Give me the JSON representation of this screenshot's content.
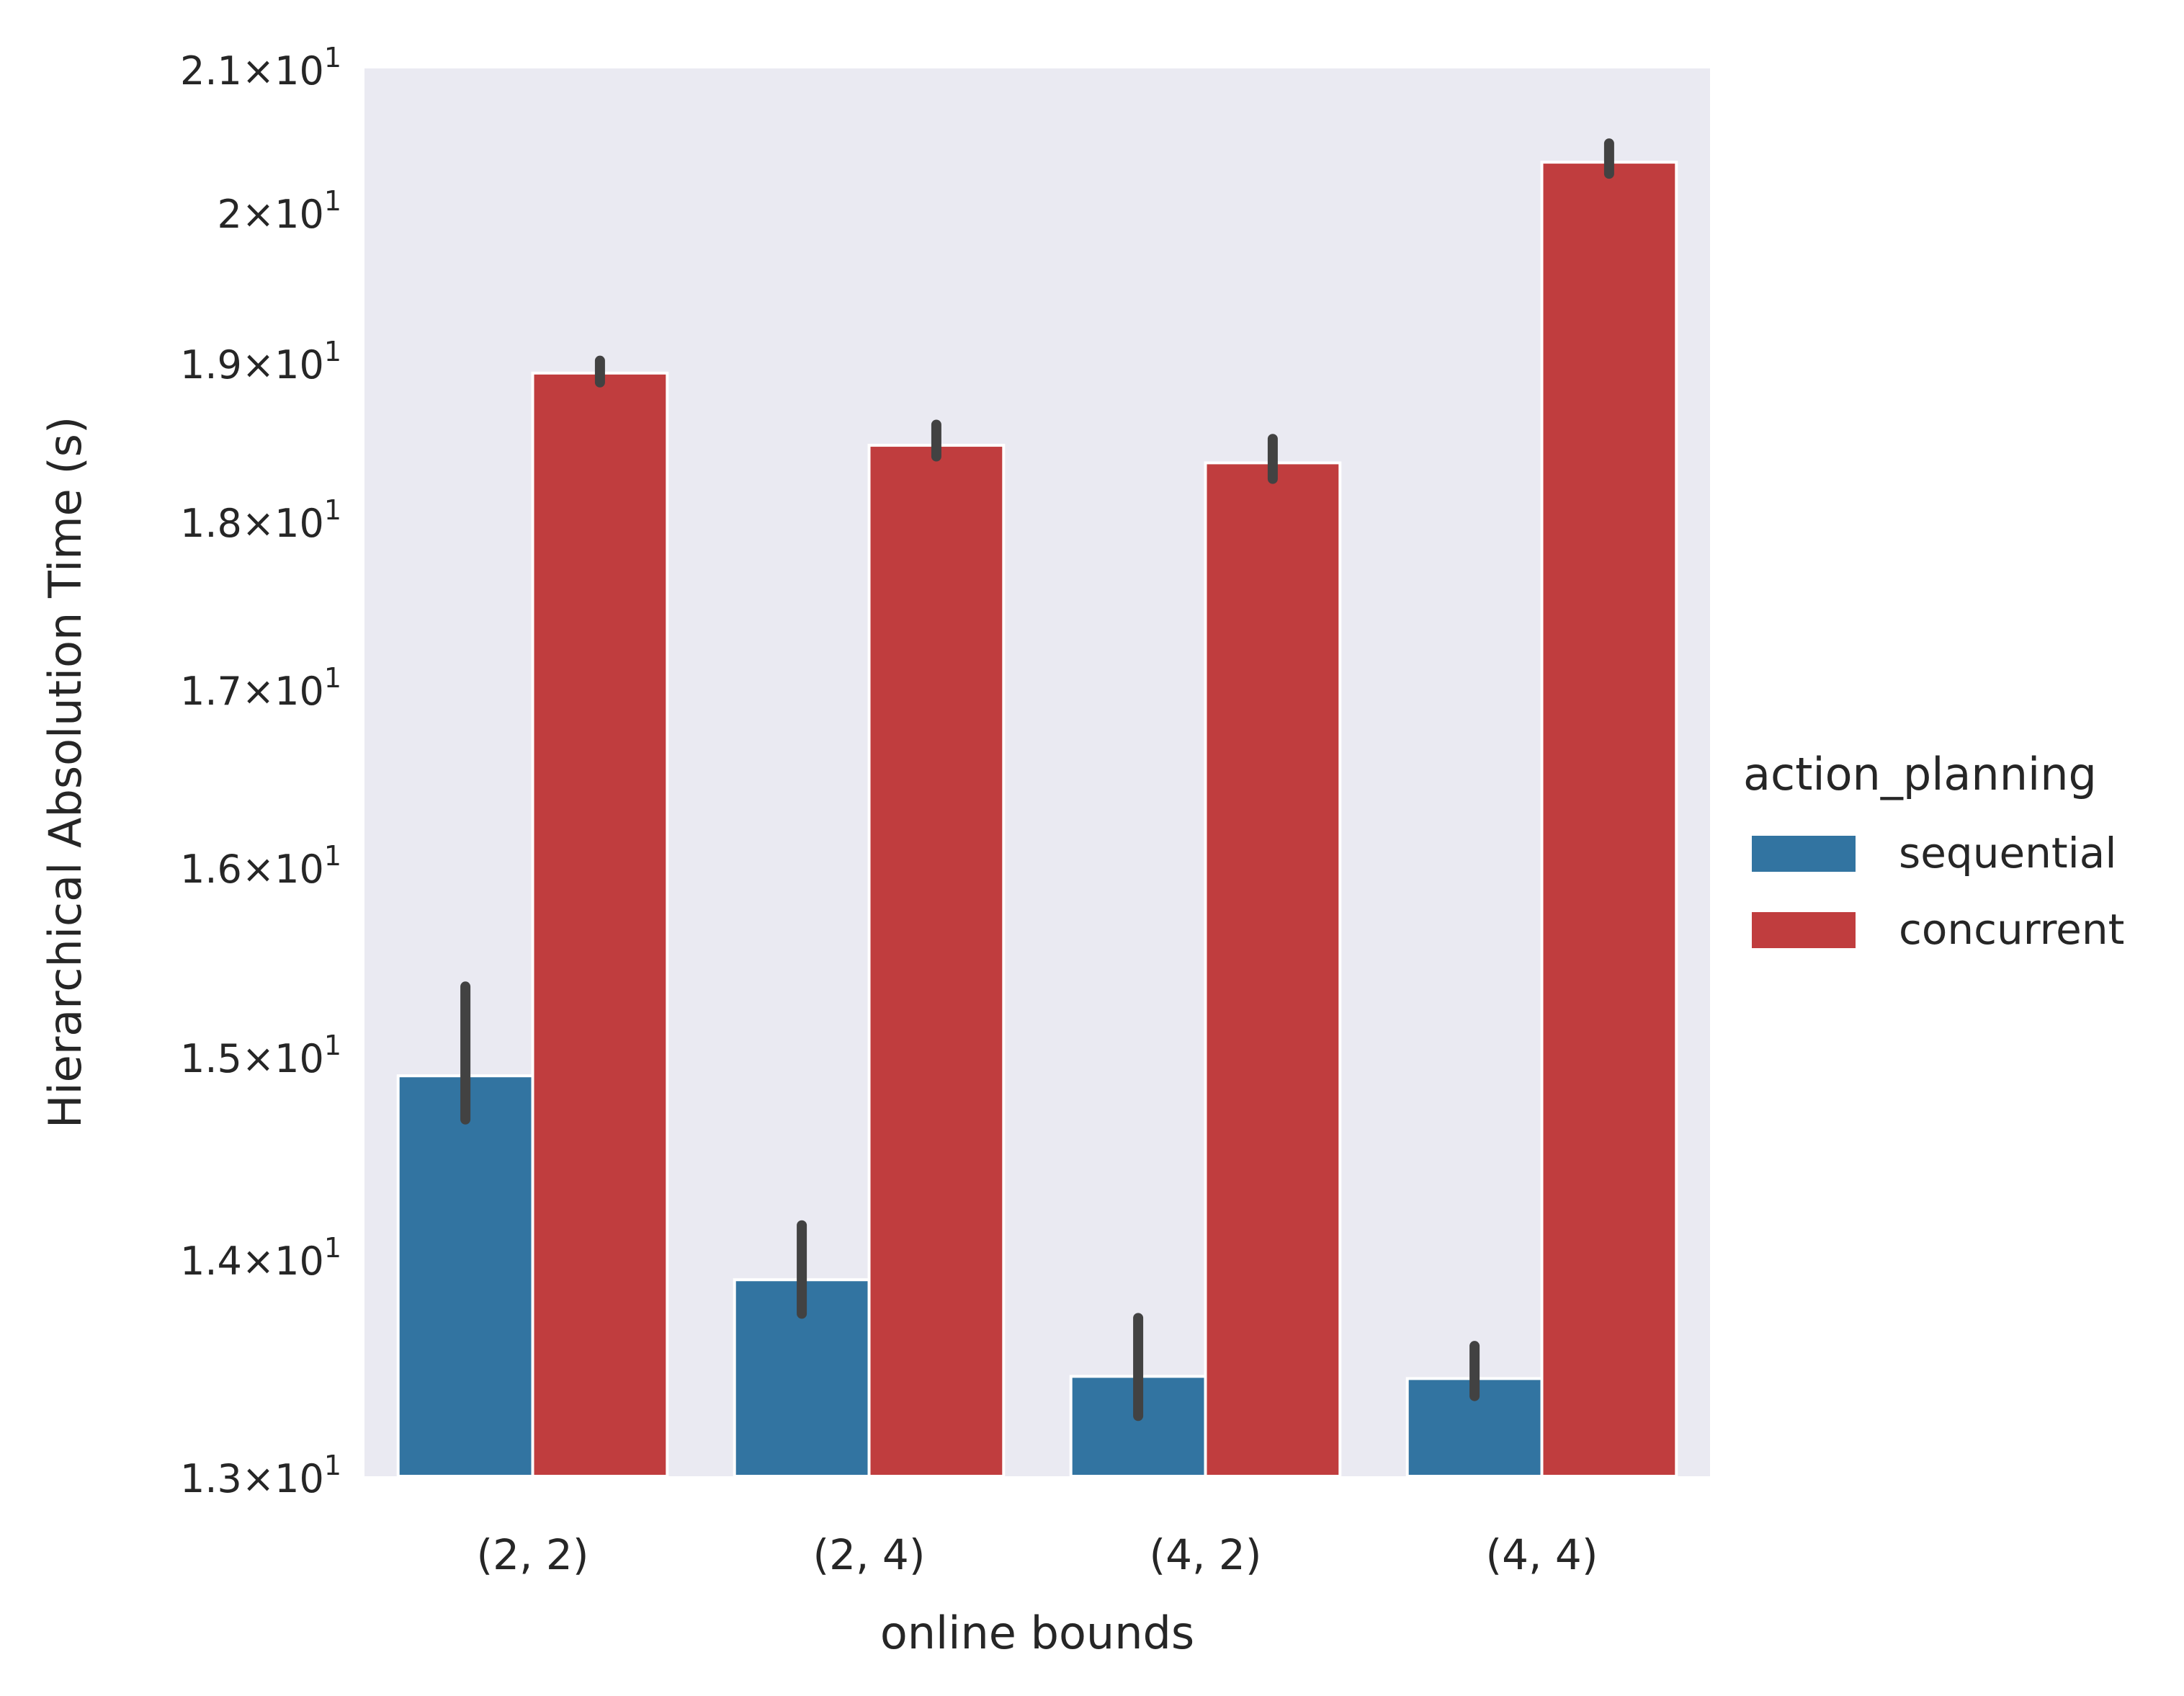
{
  "chart_data": {
    "type": "bar",
    "title": "",
    "xlabel": "online bounds",
    "ylabel": "Hierarchical Absolution Time (s)",
    "yscale": "log",
    "ylim": [
      13.0,
      21.0
    ],
    "yticks": [
      {
        "value": 13,
        "mantissa": "1.3",
        "times": "×",
        "base": "10",
        "exp": "1"
      },
      {
        "value": 14,
        "mantissa": "1.4",
        "times": "×",
        "base": "10",
        "exp": "1"
      },
      {
        "value": 15,
        "mantissa": "1.5",
        "times": "×",
        "base": "10",
        "exp": "1"
      },
      {
        "value": 16,
        "mantissa": "1.6",
        "times": "×",
        "base": "10",
        "exp": "1"
      },
      {
        "value": 17,
        "mantissa": "1.7",
        "times": "×",
        "base": "10",
        "exp": "1"
      },
      {
        "value": 18,
        "mantissa": "1.8",
        "times": "×",
        "base": "10",
        "exp": "1"
      },
      {
        "value": 19,
        "mantissa": "1.9",
        "times": "×",
        "base": "10",
        "exp": "1"
      },
      {
        "value": 20,
        "mantissa": "2",
        "times": "×",
        "base": "10",
        "exp": "1"
      },
      {
        "value": 21,
        "mantissa": "2.1",
        "times": "×",
        "base": "10",
        "exp": "1"
      }
    ],
    "categories": [
      "(2, 2)",
      "(2, 4)",
      "(4, 2)",
      "(4, 4)"
    ],
    "grid": false,
    "background": "#eaeaf2",
    "legend": {
      "title": "action_planning",
      "position": "right"
    },
    "series": [
      {
        "name": "sequential",
        "color": "#3274a1",
        "values": [
          14.9,
          13.9,
          13.45,
          13.44
        ],
        "ci_low": [
          14.68,
          13.74,
          13.27,
          13.36
        ],
        "ci_high": [
          15.36,
          14.16,
          13.72,
          13.59
        ]
      },
      {
        "name": "concurrent",
        "color": "#c03d3e",
        "values": [
          18.93,
          18.47,
          18.36,
          20.34
        ],
        "ci_low": [
          18.87,
          18.4,
          18.26,
          20.26
        ],
        "ci_high": [
          19.01,
          18.6,
          18.51,
          20.47
        ]
      }
    ]
  }
}
